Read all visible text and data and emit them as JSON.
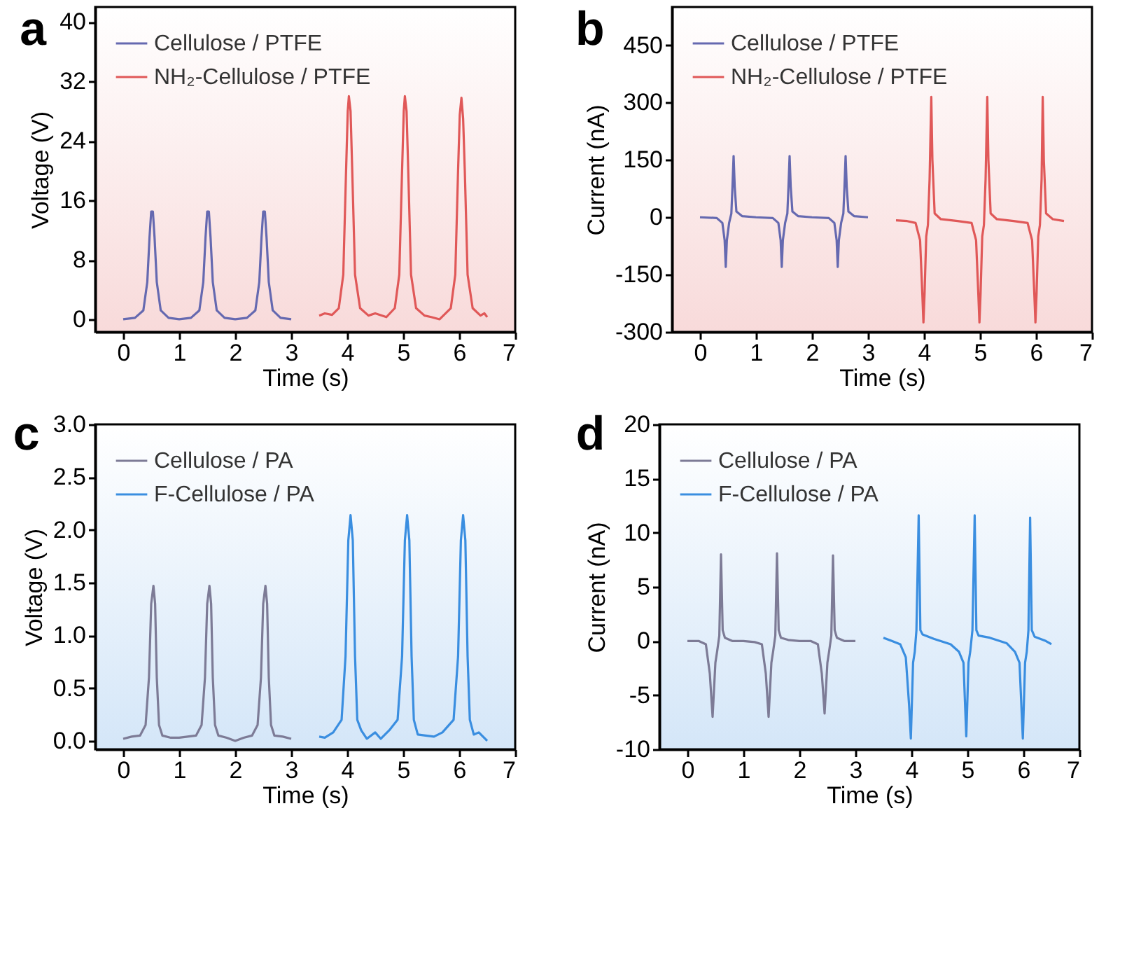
{
  "chart_data": [
    {
      "type": "line",
      "title": "a",
      "xlabel": "Time (s)",
      "ylabel": "Voltage (V)",
      "xlim": [
        -0.5,
        7
      ],
      "xticks": [
        0,
        1,
        2,
        3,
        4,
        5,
        6,
        7
      ],
      "ylim": [
        -1.7,
        42
      ],
      "yticks": [
        0,
        8,
        16,
        24,
        32,
        40
      ],
      "legend": "top left",
      "series": [
        {
          "name": "Cellulose / PTFE",
          "color": "#6569b0",
          "x": [
            0,
            0.21,
            0.36,
            0.43,
            0.47,
            0.5,
            0.53,
            0.56,
            0.6,
            0.67,
            0.81,
            1,
            1.21,
            1.36,
            1.43,
            1.47,
            1.5,
            1.53,
            1.56,
            1.6,
            1.67,
            1.81,
            2,
            2.21,
            2.36,
            2.43,
            2.47,
            2.5,
            2.53,
            2.56,
            2.6,
            2.67,
            2.81,
            3
          ],
          "values": [
            0,
            0.2,
            1.2,
            5,
            11,
            14.5,
            14.5,
            11,
            5,
            1.2,
            0.2,
            0,
            0.2,
            1.2,
            5,
            11,
            14.5,
            14.5,
            11,
            5,
            1.2,
            0.2,
            0,
            0.2,
            1.2,
            5,
            11,
            14.5,
            14.5,
            11,
            5,
            1.2,
            0.2,
            0
          ]
        },
        {
          "name": "NH₂-Cellulose / PTFE",
          "color": "#e05858",
          "x": [
            3.5,
            3.6,
            3.73,
            3.85,
            3.93,
            3.98,
            4.01,
            4.03,
            4.06,
            4.09,
            4.14,
            4.23,
            4.38,
            4.5,
            4.7,
            4.85,
            4.93,
            4.98,
            5.01,
            5.03,
            5.06,
            5.09,
            5.14,
            5.23,
            5.38,
            5.5,
            5.65,
            5.85,
            5.93,
            5.98,
            6.01,
            6.04,
            6.07,
            6.1,
            6.15,
            6.24,
            6.38,
            6.45,
            6.5
          ],
          "values": [
            0.5,
            0.8,
            0.6,
            1.5,
            6,
            20,
            28,
            30,
            28,
            20,
            6,
            1.5,
            0.5,
            0.8,
            0.3,
            1.5,
            6,
            20,
            28,
            30,
            28,
            20,
            6,
            1.5,
            0.5,
            0.3,
            0,
            1.5,
            6,
            20,
            27.5,
            29.8,
            27,
            20,
            6,
            1.5,
            0.5,
            0.8,
            0.3
          ]
        }
      ]
    },
    {
      "type": "line",
      "title": "b",
      "xlabel": "Time (s)",
      "ylabel": "Current (nA)",
      "xlim": [
        -0.5,
        7
      ],
      "xticks": [
        0,
        1,
        2,
        3,
        4,
        5,
        6,
        7
      ],
      "ylim": [
        -300,
        550
      ],
      "yticks": [
        -300,
        -150,
        0,
        150,
        300,
        450
      ],
      "legend": "top left",
      "series": [
        {
          "name": "Cellulose / PTFE",
          "color": "#6569b0",
          "x": [
            0,
            0.3,
            0.4,
            0.44,
            0.46,
            0.48,
            0.52,
            0.56,
            0.58,
            0.6,
            0.62,
            0.65,
            0.75,
            1,
            1.3,
            1.4,
            1.44,
            1.46,
            1.48,
            1.52,
            1.56,
            1.58,
            1.6,
            1.62,
            1.65,
            1.75,
            2,
            2.3,
            2.4,
            2.44,
            2.46,
            2.48,
            2.52,
            2.56,
            2.58,
            2.6,
            2.62,
            2.65,
            2.75,
            3
          ],
          "values": [
            0,
            -2,
            -15,
            -60,
            -130,
            -60,
            -15,
            10,
            80,
            160,
            80,
            15,
            3,
            0,
            -2,
            -15,
            -60,
            -130,
            -60,
            -15,
            10,
            80,
            160,
            80,
            15,
            3,
            0,
            -2,
            -15,
            -60,
            -130,
            -60,
            -15,
            10,
            80,
            160,
            80,
            15,
            3,
            0
          ]
        },
        {
          "name": "NH₂-Cellulose / PTFE",
          "color": "#e05858",
          "x": [
            3.5,
            3.7,
            3.85,
            3.93,
            3.97,
            3.99,
            4.01,
            4.04,
            4.07,
            4.1,
            4.13,
            4.15,
            4.19,
            4.3,
            4.6,
            4.85,
            4.93,
            4.97,
            4.99,
            5.01,
            5.04,
            5.07,
            5.1,
            5.13,
            5.15,
            5.19,
            5.3,
            5.6,
            5.85,
            5.93,
            5.97,
            5.99,
            6.01,
            6.04,
            6.07,
            6.1,
            6.12,
            6.14,
            6.18,
            6.3,
            6.5
          ],
          "values": [
            -8,
            -10,
            -15,
            -60,
            -200,
            -275,
            -200,
            -50,
            -20,
            100,
            315,
            150,
            10,
            -5,
            -10,
            -15,
            -60,
            -200,
            -275,
            -200,
            -50,
            -20,
            100,
            315,
            150,
            10,
            -5,
            -10,
            -15,
            -60,
            -200,
            -275,
            -200,
            -50,
            -20,
            100,
            315,
            150,
            10,
            -5,
            -10
          ]
        }
      ]
    },
    {
      "type": "line",
      "title": "c",
      "xlabel": "Time (s)",
      "ylabel": "Voltage (V)",
      "xlim": [
        -0.5,
        7
      ],
      "xticks": [
        0,
        1,
        2,
        3,
        4,
        5,
        6,
        7
      ],
      "ylim": [
        -0.08,
        3
      ],
      "yticks": [
        {
          "value": 0,
          "label": "0.0"
        },
        {
          "value": 0.5,
          "label": "0.5"
        },
        {
          "value": 1,
          "label": "1.0"
        },
        {
          "value": 1.5,
          "label": "1.5"
        },
        {
          "value": 2,
          "label": "2.0"
        },
        {
          "value": 2.5,
          "label": "2.5"
        },
        {
          "value": 3,
          "label": "3.0"
        }
      ],
      "legend": "top left",
      "series": [
        {
          "name": "Cellulose / PA",
          "color": "#7d7b96",
          "x": [
            0,
            0.15,
            0.3,
            0.4,
            0.46,
            0.5,
            0.54,
            0.57,
            0.6,
            0.64,
            0.7,
            0.85,
            1,
            1.15,
            1.3,
            1.4,
            1.46,
            1.5,
            1.54,
            1.57,
            1.6,
            1.64,
            1.7,
            1.85,
            2,
            2.15,
            2.3,
            2.4,
            2.46,
            2.5,
            2.54,
            2.57,
            2.6,
            2.64,
            2.7,
            2.85,
            3
          ],
          "values": [
            0.02,
            0.04,
            0.05,
            0.15,
            0.6,
            1.3,
            1.47,
            1.3,
            0.6,
            0.15,
            0.05,
            0.03,
            0.03,
            0.04,
            0.05,
            0.15,
            0.6,
            1.3,
            1.47,
            1.3,
            0.6,
            0.15,
            0.05,
            0.03,
            0,
            0.03,
            0.05,
            0.15,
            0.6,
            1.3,
            1.47,
            1.3,
            0.6,
            0.15,
            0.05,
            0.04,
            0.02
          ]
        },
        {
          "name": "F-Cellulose / PA",
          "color": "#3a8ee0",
          "x": [
            3.5,
            3.6,
            3.75,
            3.9,
            3.97,
            4.02,
            4.06,
            4.1,
            4.14,
            4.18,
            4.25,
            4.35,
            4.5,
            4.6,
            4.75,
            4.9,
            4.98,
            5.03,
            5.07,
            5.11,
            5.15,
            5.19,
            5.26,
            5.4,
            5.55,
            5.7,
            5.9,
            5.98,
            6.03,
            6.07,
            6.11,
            6.15,
            6.19,
            6.26,
            6.35,
            6.5
          ],
          "values": [
            0.04,
            0.03,
            0.08,
            0.2,
            0.8,
            1.9,
            2.14,
            1.9,
            0.8,
            0.2,
            0.1,
            0.02,
            0.08,
            0.02,
            0.1,
            0.2,
            0.8,
            1.9,
            2.14,
            1.9,
            0.8,
            0.2,
            0.06,
            0.05,
            0.04,
            0.08,
            0.2,
            0.8,
            1.9,
            2.14,
            1.9,
            0.8,
            0.2,
            0.06,
            0.08,
            0
          ]
        }
      ]
    },
    {
      "type": "line",
      "title": "d",
      "xlabel": "Time (s)",
      "ylabel": "Current (nA)",
      "xlim": [
        -0.5,
        7
      ],
      "xticks": [
        0,
        1,
        2,
        3,
        4,
        5,
        6,
        7
      ],
      "ylim": [
        -10,
        20
      ],
      "yticks": [
        -10,
        -5,
        0,
        5,
        10,
        15,
        20
      ],
      "legend": "top left",
      "series": [
        {
          "name": "Cellulose / PA",
          "color": "#7d7b96",
          "x": [
            0,
            0.2,
            0.33,
            0.4,
            0.45,
            0.5,
            0.53,
            0.57,
            0.6,
            0.63,
            0.67,
            0.8,
            1,
            1.2,
            1.33,
            1.4,
            1.45,
            1.5,
            1.53,
            1.57,
            1.6,
            1.63,
            1.67,
            1.8,
            2,
            2.2,
            2.33,
            2.4,
            2.45,
            2.5,
            2.53,
            2.57,
            2.6,
            2.63,
            2.67,
            2.8,
            3
          ],
          "values": [
            0,
            0,
            -0.3,
            -3,
            -7,
            -2,
            -1,
            0.5,
            8,
            1,
            0.3,
            0,
            0,
            -0.1,
            -0.3,
            -3,
            -7,
            -2,
            -1,
            0.5,
            8.1,
            1,
            0.3,
            0.1,
            0,
            0,
            -0.3,
            -3,
            -6.7,
            -2,
            -1,
            0.5,
            7.9,
            1,
            0.3,
            0,
            0
          ]
        },
        {
          "name": "F-Cellulose / PA",
          "color": "#3a8ee0",
          "x": [
            3.5,
            3.65,
            3.8,
            3.9,
            3.96,
            3.99,
            4.03,
            4.06,
            4.09,
            4.13,
            4.16,
            4.2,
            4.4,
            4.7,
            4.85,
            4.93,
            4.98,
            5.02,
            5.05,
            5.09,
            5.13,
            5.16,
            5.2,
            5.4,
            5.7,
            5.85,
            5.93,
            5.99,
            6.03,
            6.06,
            6.09,
            6.12,
            6.15,
            6.2,
            6.4,
            6.5
          ],
          "values": [
            0.3,
            0,
            -0.3,
            -1.5,
            -6,
            -9,
            -2,
            -1,
            1,
            11.6,
            1,
            0.6,
            0.2,
            -0.3,
            -1,
            -2,
            -8.8,
            -2,
            -1,
            1,
            11.6,
            1,
            0.5,
            0.3,
            -0.2,
            -1,
            -2,
            -9,
            -2,
            -1,
            1,
            11.4,
            1,
            0.4,
            0,
            -0.3
          ]
        }
      ]
    }
  ]
}
